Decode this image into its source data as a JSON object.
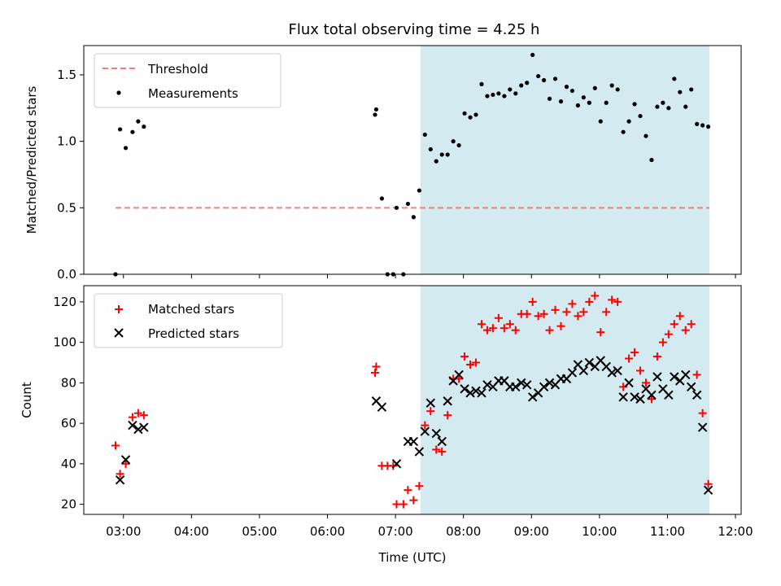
{
  "chart_data": [
    {
      "type": "scatter",
      "title": "Flux total observing time = 4.25 h",
      "xlabel": "",
      "ylabel": "Matched/Predicted stars",
      "ylim": [
        0,
        1.72
      ],
      "xlim": [
        "02:25",
        "12:05"
      ],
      "yticks": [
        "0.0",
        "0.5",
        "1.0",
        "1.5"
      ],
      "yticks_values": [
        0,
        0.5,
        1.0,
        1.5
      ],
      "shaded_span": {
        "start": "07:22",
        "end": "11:37",
        "color": "#d3eaf1"
      },
      "threshold": {
        "name": "Threshold",
        "value": 0.5,
        "x": [
          "02:53",
          "11:37"
        ],
        "color": "#f08080"
      },
      "legend": {
        "placement": "top-left",
        "entries": [
          "Threshold",
          "Measurements"
        ]
      },
      "series": [
        {
          "name": "Measurements",
          "marker": "dot",
          "color": "#000000",
          "points": [
            [
              "02:53",
              0.0
            ],
            [
              "02:57",
              1.09
            ],
            [
              "03:02",
              0.95
            ],
            [
              "03:08",
              1.07
            ],
            [
              "03:13",
              1.15
            ],
            [
              "03:18",
              1.11
            ],
            [
              "06:42",
              1.2
            ],
            [
              "06:43",
              1.24
            ],
            [
              "06:48",
              0.57
            ],
            [
              "06:53",
              0.0
            ],
            [
              "06:58",
              0.0
            ],
            [
              "07:01",
              0.5
            ],
            [
              "07:07",
              0.0
            ],
            [
              "07:11",
              0.53
            ],
            [
              "07:16",
              0.43
            ],
            [
              "07:21",
              0.63
            ],
            [
              "07:26",
              1.05
            ],
            [
              "07:31",
              0.94
            ],
            [
              "07:36",
              0.85
            ],
            [
              "07:41",
              0.9
            ],
            [
              "07:46",
              0.9
            ],
            [
              "07:51",
              1.0
            ],
            [
              "07:56",
              0.97
            ],
            [
              "08:01",
              1.21
            ],
            [
              "08:06",
              1.18
            ],
            [
              "08:11",
              1.2
            ],
            [
              "08:16",
              1.43
            ],
            [
              "08:21",
              1.34
            ],
            [
              "08:26",
              1.35
            ],
            [
              "08:31",
              1.36
            ],
            [
              "08:36",
              1.34
            ],
            [
              "08:41",
              1.39
            ],
            [
              "08:46",
              1.36
            ],
            [
              "08:51",
              1.42
            ],
            [
              "08:56",
              1.44
            ],
            [
              "09:01",
              1.65
            ],
            [
              "09:06",
              1.49
            ],
            [
              "09:11",
              1.46
            ],
            [
              "09:16",
              1.32
            ],
            [
              "09:21",
              1.47
            ],
            [
              "09:26",
              1.3
            ],
            [
              "09:31",
              1.41
            ],
            [
              "09:36",
              1.38
            ],
            [
              "09:41",
              1.27
            ],
            [
              "09:46",
              1.33
            ],
            [
              "09:51",
              1.29
            ],
            [
              "09:56",
              1.4
            ],
            [
              "10:01",
              1.15
            ],
            [
              "10:06",
              1.29
            ],
            [
              "10:11",
              1.42
            ],
            [
              "10:16",
              1.39
            ],
            [
              "10:21",
              1.07
            ],
            [
              "10:26",
              1.15
            ],
            [
              "10:31",
              1.28
            ],
            [
              "10:36",
              1.19
            ],
            [
              "10:41",
              1.04
            ],
            [
              "10:46",
              0.86
            ],
            [
              "10:51",
              1.26
            ],
            [
              "10:56",
              1.29
            ],
            [
              "11:01",
              1.25
            ],
            [
              "11:06",
              1.47
            ],
            [
              "11:11",
              1.37
            ],
            [
              "11:16",
              1.26
            ],
            [
              "11:21",
              1.39
            ],
            [
              "11:26",
              1.13
            ],
            [
              "11:31",
              1.12
            ],
            [
              "11:36",
              1.11
            ]
          ]
        }
      ]
    },
    {
      "type": "scatter",
      "title": "",
      "xlabel": "Time (UTC)",
      "ylabel": "Count",
      "ylim": [
        15,
        128
      ],
      "xlim": [
        "02:25",
        "12:05"
      ],
      "yticks": [
        "20",
        "40",
        "60",
        "80",
        "100",
        "120"
      ],
      "yticks_values": [
        20,
        40,
        60,
        80,
        100,
        120
      ],
      "xticks": [
        "03:00",
        "04:00",
        "05:00",
        "06:00",
        "07:00",
        "08:00",
        "09:00",
        "10:00",
        "11:00",
        "12:00"
      ],
      "shaded_span": {
        "start": "07:22",
        "end": "11:37",
        "color": "#d3eaf1"
      },
      "legend": {
        "placement": "top-left",
        "entries": [
          "Matched stars",
          "Predicted stars"
        ]
      },
      "series": [
        {
          "name": "Matched stars",
          "marker": "plus",
          "color": "#ff0000",
          "points": [
            [
              "02:53",
              49
            ],
            [
              "02:57",
              35
            ],
            [
              "03:02",
              40
            ],
            [
              "03:08",
              63
            ],
            [
              "03:13",
              65
            ],
            [
              "03:18",
              64
            ],
            [
              "06:42",
              85
            ],
            [
              "06:43",
              88
            ],
            [
              "06:48",
              39
            ],
            [
              "06:53",
              39
            ],
            [
              "06:58",
              39
            ],
            [
              "07:01",
              20
            ],
            [
              "07:07",
              20
            ],
            [
              "07:11",
              27
            ],
            [
              "07:16",
              22
            ],
            [
              "07:21",
              29
            ],
            [
              "07:26",
              59
            ],
            [
              "07:31",
              66
            ],
            [
              "07:36",
              47
            ],
            [
              "07:41",
              46
            ],
            [
              "07:46",
              64
            ],
            [
              "07:51",
              82
            ],
            [
              "07:56",
              82
            ],
            [
              "08:01",
              93
            ],
            [
              "08:06",
              89
            ],
            [
              "08:11",
              90
            ],
            [
              "08:16",
              109
            ],
            [
              "08:21",
              106
            ],
            [
              "08:26",
              107
            ],
            [
              "08:31",
              112
            ],
            [
              "08:36",
              107
            ],
            [
              "08:41",
              109
            ],
            [
              "08:46",
              106
            ],
            [
              "08:51",
              114
            ],
            [
              "08:56",
              114
            ],
            [
              "09:01",
              120
            ],
            [
              "09:06",
              113
            ],
            [
              "09:11",
              114
            ],
            [
              "09:16",
              106
            ],
            [
              "09:21",
              116
            ],
            [
              "09:26",
              108
            ],
            [
              "09:31",
              115
            ],
            [
              "09:36",
              119
            ],
            [
              "09:41",
              113
            ],
            [
              "09:46",
              115
            ],
            [
              "09:51",
              120
            ],
            [
              "09:56",
              123
            ],
            [
              "10:01",
              105
            ],
            [
              "10:06",
              115
            ],
            [
              "10:11",
              121
            ],
            [
              "10:16",
              120
            ],
            [
              "10:21",
              78
            ],
            [
              "10:26",
              92
            ],
            [
              "10:31",
              95
            ],
            [
              "10:36",
              86
            ],
            [
              "10:41",
              80
            ],
            [
              "10:46",
              72
            ],
            [
              "10:51",
              93
            ],
            [
              "10:56",
              100
            ],
            [
              "11:01",
              104
            ],
            [
              "11:06",
              109
            ],
            [
              "11:11",
              113
            ],
            [
              "11:16",
              106
            ],
            [
              "11:21",
              109
            ],
            [
              "11:26",
              84
            ],
            [
              "11:31",
              65
            ],
            [
              "11:36",
              30
            ]
          ]
        },
        {
          "name": "Predicted stars",
          "marker": "x",
          "color": "#000000",
          "points": [
            [
              "02:57",
              32
            ],
            [
              "03:02",
              42
            ],
            [
              "03:08",
              59
            ],
            [
              "03:13",
              57
            ],
            [
              "03:18",
              58
            ],
            [
              "06:43",
              71
            ],
            [
              "06:48",
              68
            ],
            [
              "07:01",
              40
            ],
            [
              "07:11",
              51
            ],
            [
              "07:16",
              51
            ],
            [
              "07:21",
              46
            ],
            [
              "07:26",
              56
            ],
            [
              "07:31",
              70
            ],
            [
              "07:36",
              55
            ],
            [
              "07:41",
              51
            ],
            [
              "07:46",
              71
            ],
            [
              "07:51",
              81
            ],
            [
              "07:56",
              84
            ],
            [
              "08:01",
              77
            ],
            [
              "08:06",
              75
            ],
            [
              "08:11",
              76
            ],
            [
              "08:16",
              75
            ],
            [
              "08:21",
              79
            ],
            [
              "08:26",
              78
            ],
            [
              "08:31",
              81
            ],
            [
              "08:36",
              81
            ],
            [
              "08:41",
              78
            ],
            [
              "08:46",
              78
            ],
            [
              "08:51",
              80
            ],
            [
              "08:56",
              79
            ],
            [
              "09:01",
              73
            ],
            [
              "09:06",
              75
            ],
            [
              "09:11",
              78
            ],
            [
              "09:16",
              80
            ],
            [
              "09:21",
              79
            ],
            [
              "09:26",
              82
            ],
            [
              "09:31",
              82
            ],
            [
              "09:36",
              85
            ],
            [
              "09:41",
              89
            ],
            [
              "09:46",
              86
            ],
            [
              "09:51",
              90
            ],
            [
              "09:56",
              88
            ],
            [
              "10:01",
              91
            ],
            [
              "10:06",
              88
            ],
            [
              "10:11",
              85
            ],
            [
              "10:16",
              86
            ],
            [
              "10:21",
              73
            ],
            [
              "10:26",
              80
            ],
            [
              "10:31",
              73
            ],
            [
              "10:36",
              72
            ],
            [
              "10:41",
              77
            ],
            [
              "10:46",
              74
            ],
            [
              "10:51",
              83
            ],
            [
              "10:56",
              77
            ],
            [
              "11:01",
              74
            ],
            [
              "11:06",
              83
            ],
            [
              "11:11",
              81
            ],
            [
              "11:16",
              84
            ],
            [
              "11:21",
              78
            ],
            [
              "11:26",
              74
            ],
            [
              "11:31",
              58
            ],
            [
              "11:36",
              27
            ]
          ]
        }
      ]
    }
  ]
}
